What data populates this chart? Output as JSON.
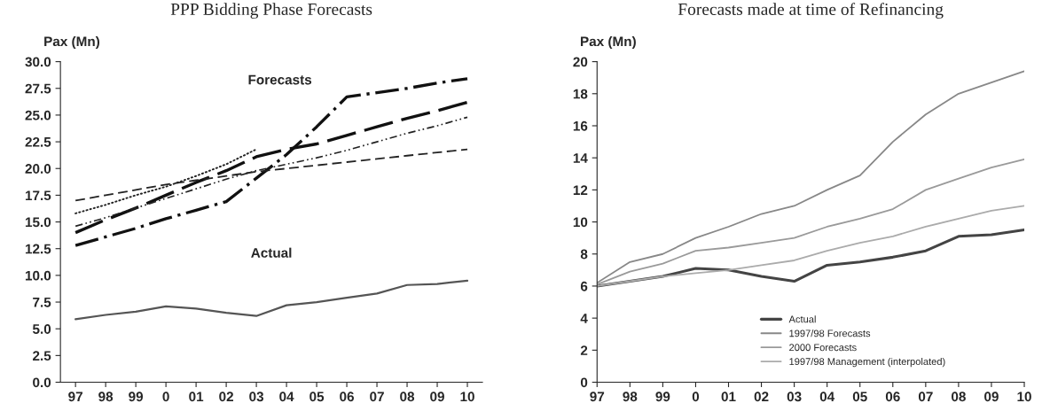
{
  "chart_data": [
    {
      "type": "line",
      "title": "PPP Bidding Phase Forecasts",
      "ylabel": "Pax (Mn)",
      "categories": [
        "97",
        "98",
        "99",
        "0",
        "01",
        "02",
        "03",
        "04",
        "05",
        "06",
        "07",
        "08",
        "09",
        "10"
      ],
      "ylim": [
        0,
        30
      ],
      "yticks": [
        {
          "value": 0,
          "label": "0.0"
        },
        {
          "value": 2.5,
          "label": "2.5"
        },
        {
          "value": 5,
          "label": "5.0"
        },
        {
          "value": 7.5,
          "label": "7.5"
        },
        {
          "value": 10,
          "label": "10.0"
        },
        {
          "value": 12.5,
          "label": "12.5"
        },
        {
          "value": 15,
          "label": "15.0"
        },
        {
          "value": 17.5,
          "label": "17.5"
        },
        {
          "value": 20,
          "label": "20.0"
        },
        {
          "value": 22.5,
          "label": "22.5"
        },
        {
          "value": 25,
          "label": "25.0"
        },
        {
          "value": 27.5,
          "label": "27.5"
        },
        {
          "value": 30,
          "label": "30.0"
        }
      ],
      "grid": false,
      "legend": false,
      "marker": "none",
      "annotations": [
        "Forecasts",
        "Actual"
      ],
      "series": [
        {
          "color": "#555555",
          "line_style": "solid",
          "values": [
            5.9,
            6.3,
            6.6,
            7.1,
            6.9,
            6.5,
            6.2,
            7.2,
            7.5,
            7.9,
            8.3,
            9.1,
            9.2,
            9.5
          ]
        },
        {
          "color": "#111111",
          "line_style": "dashed",
          "values": [
            12.8,
            13.6,
            14.4,
            15.3,
            16.1,
            16.9,
            19.1,
            21.3,
            23.9,
            26.7,
            27.1,
            27.5,
            28.0,
            28.4
          ]
        },
        {
          "color": "#111111",
          "line_style": "dashed",
          "values": [
            14.0,
            15.2,
            16.3,
            17.5,
            18.7,
            19.8,
            21.1,
            21.8,
            22.3,
            23.1,
            23.9,
            24.7,
            25.4,
            26.2
          ]
        },
        {
          "color": "#222222",
          "line_style": "dashed",
          "values": [
            14.6,
            15.4,
            16.3,
            17.2,
            18.1,
            19.0,
            19.8,
            20.4,
            21.0,
            21.7,
            22.5,
            23.3,
            24.0,
            24.8
          ]
        },
        {
          "color": "#222222",
          "line_style": "dashed",
          "values": [
            17.0,
            17.5,
            18.0,
            18.5,
            18.9,
            19.3,
            19.7,
            20.0,
            20.3,
            20.6,
            20.9,
            21.2,
            21.5,
            21.8
          ]
        },
        {
          "color": "#222222",
          "line_style": "dotted",
          "values": [
            15.8,
            16.6,
            17.5,
            18.3,
            19.3,
            20.4,
            21.8,
            null,
            null,
            null,
            null,
            null,
            null,
            null
          ]
        }
      ]
    },
    {
      "type": "line",
      "title": "Forecasts made at time of Refinancing",
      "ylabel": "Pax (Mn)",
      "categories": [
        "97",
        "98",
        "99",
        "0",
        "01",
        "02",
        "03",
        "04",
        "05",
        "06",
        "07",
        "08",
        "09",
        "10"
      ],
      "ylim": [
        0,
        20
      ],
      "yticks": [
        0,
        2,
        4,
        6,
        8,
        10,
        12,
        14,
        16,
        18,
        20
      ],
      "grid": false,
      "legend": "bottom",
      "marker": "none",
      "series": [
        {
          "name": "Actual",
          "color": "#444444",
          "line_style": "solid",
          "values": [
            6.0,
            6.3,
            6.6,
            7.1,
            7.0,
            6.6,
            6.3,
            7.3,
            7.5,
            7.8,
            8.2,
            9.1,
            9.2,
            9.5
          ]
        },
        {
          "name": "1997/98 Forecasts",
          "color": "#888888",
          "line_style": "solid",
          "values": [
            6.2,
            7.5,
            8.0,
            9.0,
            9.7,
            10.5,
            11.0,
            12.0,
            12.9,
            15.0,
            16.7,
            18.0,
            18.7,
            19.4
          ]
        },
        {
          "name": "2000 Forecasts",
          "color": "#9a9a9a",
          "line_style": "solid",
          "values": [
            6.1,
            6.9,
            7.4,
            8.2,
            8.4,
            8.7,
            9.0,
            9.7,
            10.2,
            10.8,
            12.0,
            12.7,
            13.4,
            13.9
          ]
        },
        {
          "name": "1997/98 Management (interpolated)",
          "color": "#ababab",
          "line_style": "solid",
          "values": [
            6.0,
            6.3,
            6.6,
            6.8,
            7.0,
            7.3,
            7.6,
            8.2,
            8.7,
            9.1,
            9.7,
            10.2,
            10.7,
            11.0
          ]
        }
      ]
    }
  ]
}
